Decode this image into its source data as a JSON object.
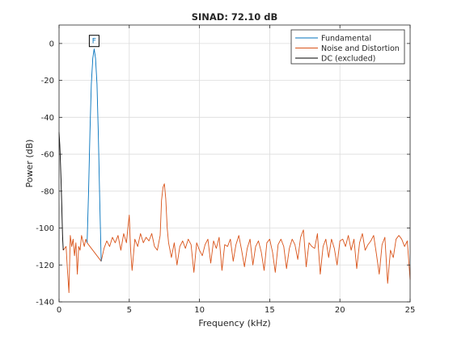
{
  "chart_data": {
    "type": "line",
    "title": "SINAD:  72.10 dB",
    "xlabel": "Frequency (kHz)",
    "ylabel": "Power (dB)",
    "xlim": [
      0,
      25
    ],
    "ylim": [
      -140,
      10
    ],
    "xticks": [
      0,
      5,
      10,
      15,
      20,
      25
    ],
    "yticks": [
      0,
      -20,
      -40,
      -60,
      -80,
      -100,
      -120,
      -140
    ],
    "grid": true,
    "legend_position": "top-right",
    "marker_label": "F",
    "series": [
      {
        "name": "Fundamental",
        "color": "#0072bd",
        "x": [
          2.0,
          2.1,
          2.2,
          2.3,
          2.4,
          2.5,
          2.6,
          2.7,
          2.8,
          2.9,
          3.0
        ],
        "y": [
          -108,
          -80,
          -48,
          -22,
          -8,
          -3,
          -8,
          -22,
          -50,
          -85,
          -118
        ]
      },
      {
        "name": "Noise and Distortion",
        "color": "#d95319",
        "x": [
          0.3,
          0.5,
          0.6,
          0.7,
          0.8,
          0.9,
          1.0,
          1.1,
          1.2,
          1.3,
          1.4,
          1.5,
          1.6,
          1.7,
          1.8,
          1.9,
          2.0,
          3.0,
          3.2,
          3.4,
          3.6,
          3.8,
          4.0,
          4.2,
          4.4,
          4.6,
          4.8,
          4.9,
          5.0,
          5.1,
          5.2,
          5.4,
          5.6,
          5.8,
          6.0,
          6.2,
          6.4,
          6.6,
          6.8,
          7.0,
          7.2,
          7.3,
          7.4,
          7.5,
          7.6,
          7.7,
          7.8,
          8.0,
          8.2,
          8.4,
          8.6,
          8.8,
          9.0,
          9.2,
          9.4,
          9.6,
          9.8,
          10.0,
          10.2,
          10.4,
          10.6,
          10.8,
          11.0,
          11.2,
          11.4,
          11.6,
          11.8,
          12.0,
          12.2,
          12.4,
          12.6,
          12.8,
          13.0,
          13.2,
          13.4,
          13.6,
          13.8,
          14.0,
          14.2,
          14.4,
          14.6,
          14.8,
          15.0,
          15.2,
          15.4,
          15.6,
          15.8,
          16.0,
          16.2,
          16.4,
          16.6,
          16.8,
          17.0,
          17.2,
          17.4,
          17.6,
          17.8,
          18.0,
          18.2,
          18.4,
          18.6,
          18.8,
          19.0,
          19.2,
          19.4,
          19.6,
          19.8,
          20.0,
          20.2,
          20.4,
          20.6,
          20.8,
          21.0,
          21.2,
          21.4,
          21.6,
          21.8,
          22.0,
          22.2,
          22.4,
          22.6,
          22.8,
          23.0,
          23.2,
          23.4,
          23.6,
          23.8,
          24.0,
          24.2,
          24.4,
          24.6,
          24.8,
          25.0
        ],
        "y": [
          -112,
          -110,
          -123,
          -135,
          -104,
          -110,
          -106,
          -115,
          -108,
          -125,
          -110,
          -112,
          -104,
          -107,
          -110,
          -106,
          -108,
          -118,
          -111,
          -107,
          -110,
          -105,
          -108,
          -104,
          -112,
          -103,
          -108,
          -100,
          -93,
          -112,
          -123,
          -106,
          -110,
          -103,
          -108,
          -105,
          -107,
          -103,
          -110,
          -112,
          -104,
          -85,
          -78,
          -76,
          -84,
          -100,
          -108,
          -116,
          -108,
          -120,
          -110,
          -107,
          -111,
          -106,
          -109,
          -124,
          -108,
          -112,
          -115,
          -109,
          -106,
          -119,
          -107,
          -111,
          -105,
          -123,
          -109,
          -110,
          -106,
          -118,
          -109,
          -104,
          -112,
          -121,
          -111,
          -106,
          -120,
          -110,
          -107,
          -113,
          -123,
          -108,
          -106,
          -113,
          -124,
          -109,
          -106,
          -110,
          -122,
          -111,
          -106,
          -109,
          -117,
          -105,
          -101,
          -121,
          -108,
          -110,
          -111,
          -103,
          -125,
          -110,
          -106,
          -116,
          -106,
          -111,
          -120,
          -107,
          -106,
          -110,
          -104,
          -112,
          -106,
          -122,
          -108,
          -103,
          -112,
          -109,
          -107,
          -104,
          -114,
          -125,
          -109,
          -105,
          -130,
          -112,
          -116,
          -106,
          -104,
          -106,
          -110,
          -107,
          -128
        ]
      },
      {
        "name": "DC (excluded)",
        "color": "#000000",
        "x": [
          0.0,
          0.05,
          0.1,
          0.15,
          0.2,
          0.25,
          0.3
        ],
        "y": [
          -48,
          -55,
          -64,
          -76,
          -90,
          -104,
          -112
        ]
      }
    ]
  }
}
